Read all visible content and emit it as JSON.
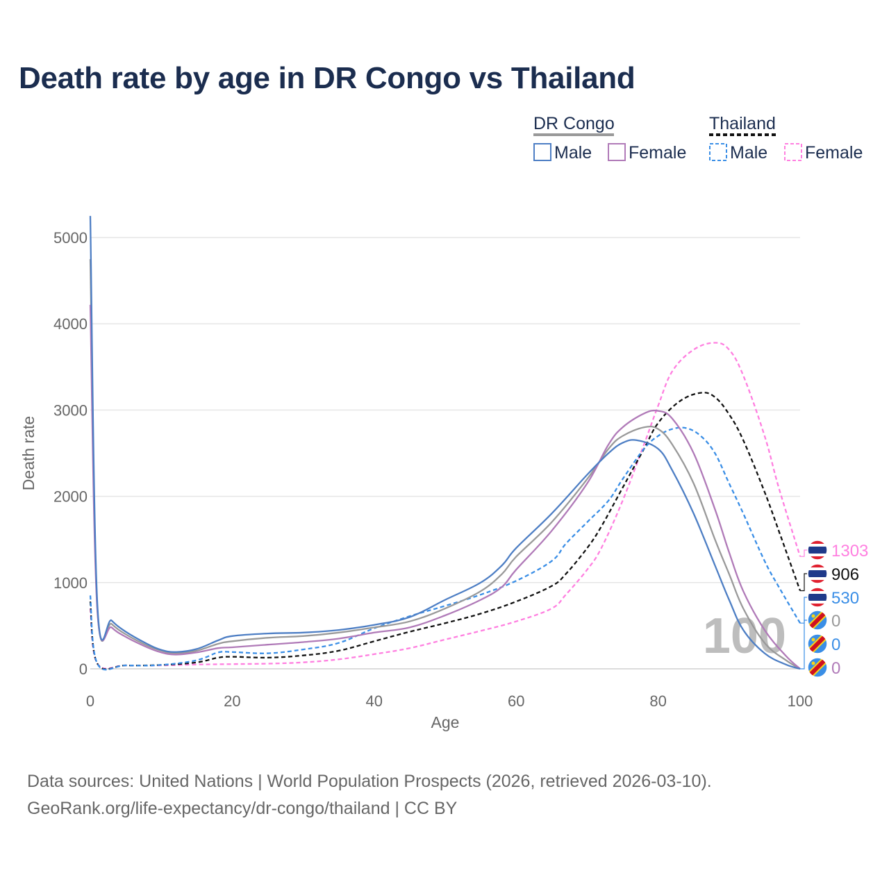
{
  "title": "Death rate by age in DR Congo vs Thailand",
  "footer": {
    "line1": "Data sources: United Nations | World Population Prospects (2026, retrieved 2026-03-10).",
    "line2": "GeoRank.org/life-expectancy/dr-congo/thailand | CC BY"
  },
  "legend": {
    "groups": [
      {
        "name": "DR Congo",
        "items": [
          "Male",
          "Female"
        ],
        "swatch_color": "#999999",
        "dashed": false
      },
      {
        "name": "Thailand",
        "items": [
          "Male",
          "Female"
        ],
        "swatch_color": "#111111",
        "dashed": true
      }
    ]
  },
  "chart_data": {
    "type": "line",
    "title": "Death rate by age in DR Congo vs Thailand",
    "xlabel": "Age",
    "ylabel": "Death rate",
    "xlim": [
      0,
      100
    ],
    "ylim": [
      0,
      5000
    ],
    "x_ticks": [
      0,
      20,
      40,
      60,
      80,
      100
    ],
    "y_ticks": [
      0,
      1000,
      2000,
      3000,
      4000,
      5000
    ],
    "watermark": "100",
    "series": [
      {
        "name": "Thailand Female",
        "country": "Thailand",
        "color": "#ff7fe0",
        "dashed": true,
        "points": [
          [
            0,
            700
          ],
          [
            1,
            60
          ],
          [
            5,
            40
          ],
          [
            10,
            40
          ],
          [
            15,
            50
          ],
          [
            20,
            55
          ],
          [
            25,
            60
          ],
          [
            30,
            75
          ],
          [
            35,
            110
          ],
          [
            40,
            170
          ],
          [
            45,
            240
          ],
          [
            50,
            340
          ],
          [
            55,
            440
          ],
          [
            60,
            550
          ],
          [
            65,
            700
          ],
          [
            67,
            860
          ],
          [
            70,
            1150
          ],
          [
            72,
            1400
          ],
          [
            75,
            1950
          ],
          [
            78,
            2600
          ],
          [
            80,
            3050
          ],
          [
            82,
            3450
          ],
          [
            85,
            3700
          ],
          [
            88,
            3780
          ],
          [
            90,
            3700
          ],
          [
            92,
            3400
          ],
          [
            95,
            2700
          ],
          [
            97,
            2100
          ],
          [
            100,
            1303
          ]
        ]
      },
      {
        "name": "Thailand Total",
        "country": "Thailand",
        "color": "#111111",
        "dashed": true,
        "points": [
          [
            0,
            780
          ],
          [
            1,
            60
          ],
          [
            5,
            40
          ],
          [
            10,
            45
          ],
          [
            15,
            75
          ],
          [
            18,
            130
          ],
          [
            20,
            140
          ],
          [
            25,
            130
          ],
          [
            30,
            155
          ],
          [
            35,
            210
          ],
          [
            40,
            320
          ],
          [
            45,
            430
          ],
          [
            50,
            530
          ],
          [
            55,
            640
          ],
          [
            60,
            780
          ],
          [
            65,
            960
          ],
          [
            67,
            1100
          ],
          [
            70,
            1400
          ],
          [
            72,
            1650
          ],
          [
            75,
            2100
          ],
          [
            78,
            2550
          ],
          [
            80,
            2850
          ],
          [
            83,
            3100
          ],
          [
            86,
            3200
          ],
          [
            88,
            3150
          ],
          [
            90,
            2950
          ],
          [
            92,
            2650
          ],
          [
            95,
            2050
          ],
          [
            97,
            1600
          ],
          [
            100,
            906
          ]
        ]
      },
      {
        "name": "Thailand Male",
        "country": "Thailand",
        "color": "#3a8ee6",
        "dashed": true,
        "points": [
          [
            0,
            850
          ],
          [
            1,
            60
          ],
          [
            5,
            40
          ],
          [
            10,
            45
          ],
          [
            15,
            100
          ],
          [
            18,
            190
          ],
          [
            20,
            195
          ],
          [
            25,
            180
          ],
          [
            30,
            225
          ],
          [
            35,
            300
          ],
          [
            40,
            470
          ],
          [
            45,
            610
          ],
          [
            50,
            730
          ],
          [
            55,
            860
          ],
          [
            60,
            1020
          ],
          [
            65,
            1250
          ],
          [
            67,
            1450
          ],
          [
            70,
            1700
          ],
          [
            73,
            1950
          ],
          [
            75,
            2200
          ],
          [
            78,
            2550
          ],
          [
            80,
            2700
          ],
          [
            82,
            2780
          ],
          [
            84,
            2790
          ],
          [
            86,
            2700
          ],
          [
            88,
            2500
          ],
          [
            90,
            2150
          ],
          [
            92,
            1800
          ],
          [
            95,
            1250
          ],
          [
            97,
            950
          ],
          [
            100,
            530
          ]
        ]
      },
      {
        "name": "DR Congo Total",
        "country": "DR Congo",
        "color": "#999999",
        "dashed": false,
        "points": [
          [
            0,
            4750
          ],
          [
            1,
            700
          ],
          [
            3,
            520
          ],
          [
            5,
            400
          ],
          [
            8,
            270
          ],
          [
            10,
            210
          ],
          [
            12,
            180
          ],
          [
            15,
            210
          ],
          [
            18,
            290
          ],
          [
            20,
            320
          ],
          [
            25,
            360
          ],
          [
            30,
            380
          ],
          [
            35,
            420
          ],
          [
            40,
            480
          ],
          [
            45,
            550
          ],
          [
            50,
            700
          ],
          [
            55,
            900
          ],
          [
            58,
            1100
          ],
          [
            60,
            1300
          ],
          [
            65,
            1700
          ],
          [
            70,
            2200
          ],
          [
            73,
            2550
          ],
          [
            75,
            2700
          ],
          [
            78,
            2800
          ],
          [
            80,
            2780
          ],
          [
            82,
            2600
          ],
          [
            85,
            2150
          ],
          [
            88,
            1500
          ],
          [
            90,
            1100
          ],
          [
            92,
            700
          ],
          [
            95,
            300
          ],
          [
            98,
            100
          ],
          [
            100,
            0
          ]
        ]
      },
      {
        "name": "DR Congo Female",
        "country": "DR Congo",
        "color": "#b07ab8",
        "dashed": false,
        "points": [
          [
            0,
            4220
          ],
          [
            1,
            670
          ],
          [
            3,
            480
          ],
          [
            5,
            370
          ],
          [
            8,
            250
          ],
          [
            10,
            190
          ],
          [
            12,
            165
          ],
          [
            15,
            190
          ],
          [
            18,
            240
          ],
          [
            20,
            250
          ],
          [
            25,
            280
          ],
          [
            30,
            310
          ],
          [
            35,
            350
          ],
          [
            40,
            420
          ],
          [
            45,
            480
          ],
          [
            50,
            620
          ],
          [
            55,
            800
          ],
          [
            58,
            950
          ],
          [
            60,
            1150
          ],
          [
            65,
            1600
          ],
          [
            70,
            2150
          ],
          [
            73,
            2600
          ],
          [
            75,
            2800
          ],
          [
            78,
            2960
          ],
          [
            80,
            2990
          ],
          [
            82,
            2900
          ],
          [
            85,
            2500
          ],
          [
            88,
            1850
          ],
          [
            90,
            1350
          ],
          [
            92,
            900
          ],
          [
            95,
            450
          ],
          [
            98,
            150
          ],
          [
            100,
            0
          ]
        ]
      },
      {
        "name": "DR Congo Male",
        "country": "DR Congo",
        "color": "#4d7ec4",
        "dashed": false,
        "points": [
          [
            0,
            5250
          ],
          [
            1,
            750
          ],
          [
            3,
            560
          ],
          [
            5,
            430
          ],
          [
            8,
            290
          ],
          [
            10,
            220
          ],
          [
            12,
            195
          ],
          [
            15,
            230
          ],
          [
            18,
            330
          ],
          [
            20,
            380
          ],
          [
            25,
            410
          ],
          [
            30,
            420
          ],
          [
            35,
            450
          ],
          [
            40,
            510
          ],
          [
            45,
            600
          ],
          [
            50,
            800
          ],
          [
            55,
            1000
          ],
          [
            58,
            1200
          ],
          [
            60,
            1400
          ],
          [
            65,
            1800
          ],
          [
            70,
            2250
          ],
          [
            73,
            2500
          ],
          [
            75,
            2620
          ],
          [
            77,
            2650
          ],
          [
            80,
            2550
          ],
          [
            82,
            2300
          ],
          [
            85,
            1800
          ],
          [
            88,
            1200
          ],
          [
            90,
            800
          ],
          [
            92,
            450
          ],
          [
            95,
            180
          ],
          [
            98,
            50
          ],
          [
            100,
            0
          ]
        ]
      }
    ],
    "end_labels": [
      {
        "value": "1303",
        "country": "Thailand",
        "color": "#ff7fe0"
      },
      {
        "value": "906",
        "country": "Thailand",
        "color": "#111111"
      },
      {
        "value": "530",
        "country": "Thailand",
        "color": "#3a8ee6"
      },
      {
        "value": "0",
        "country": "DR Congo",
        "color": "#999999"
      },
      {
        "value": "0",
        "country": "DR Congo",
        "color": "#3a8ee6"
      },
      {
        "value": "0",
        "country": "DR Congo",
        "color": "#b07ab8"
      }
    ]
  }
}
